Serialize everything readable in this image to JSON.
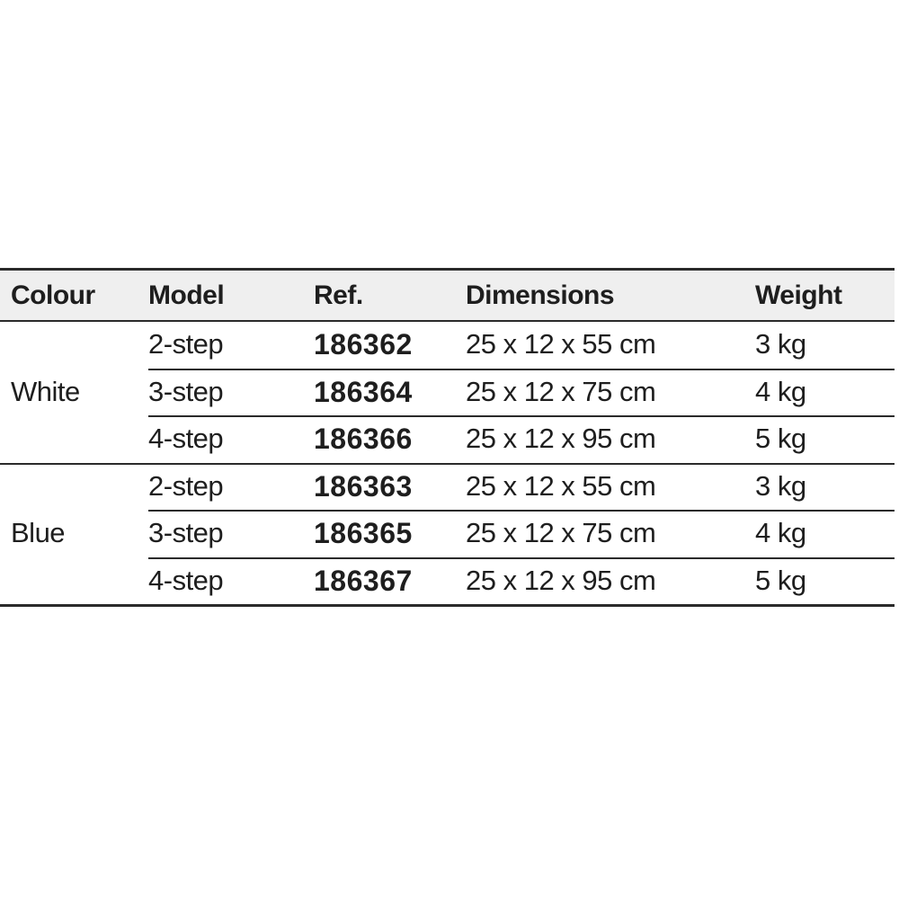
{
  "headers": [
    "Colour",
    "Model",
    "Ref.",
    "Dimensions",
    "Weight"
  ],
  "groups": [
    {
      "colour": "White",
      "rows": [
        {
          "model": "2-step",
          "ref": "186362",
          "dimensions": "25 x 12 x 55 cm",
          "weight": "3 kg"
        },
        {
          "model": "3-step",
          "ref": "186364",
          "dimensions": "25 x 12 x 75 cm",
          "weight": "4 kg"
        },
        {
          "model": "4-step",
          "ref": "186366",
          "dimensions": "25 x 12 x 95 cm",
          "weight": "5 kg"
        }
      ]
    },
    {
      "colour": "Blue",
      "rows": [
        {
          "model": "2-step",
          "ref": "186363",
          "dimensions": "25 x 12 x 55 cm",
          "weight": "3 kg"
        },
        {
          "model": "3-step",
          "ref": "186365",
          "dimensions": "25 x 12 x 75 cm",
          "weight": "4 kg"
        },
        {
          "model": "4-step",
          "ref": "186367",
          "dimensions": "25 x 12 x 95 cm",
          "weight": "5 kg"
        }
      ]
    }
  ]
}
